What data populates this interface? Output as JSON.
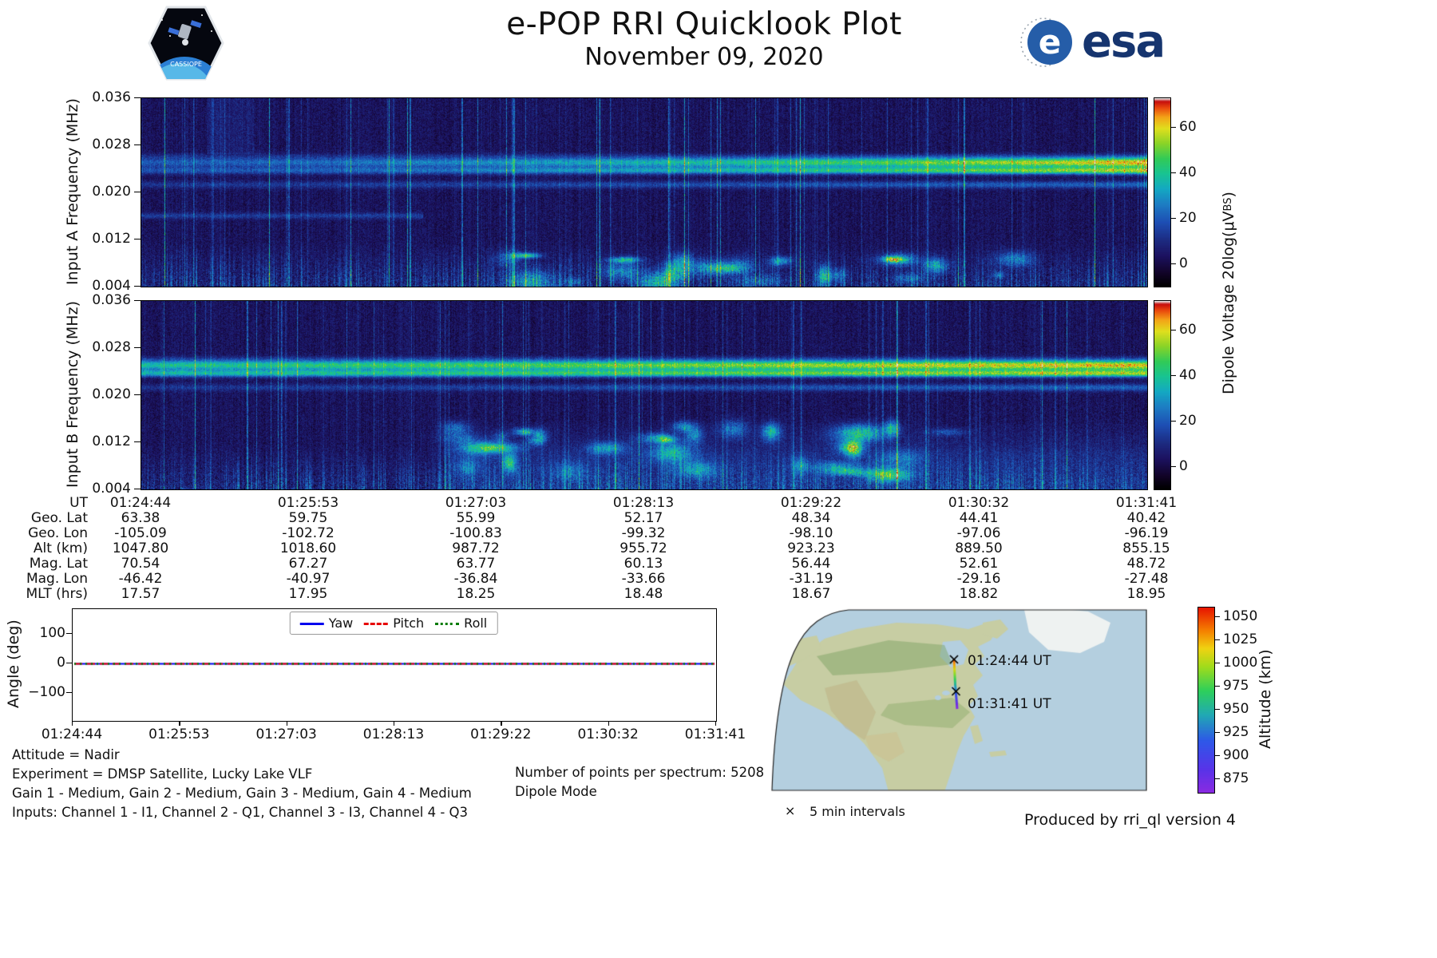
{
  "header": {
    "title": "e-POP RRI Quicklook Plot",
    "subtitle": "November 09, 2020",
    "cassiope_logo_text": "CASSIOPE",
    "esa_logo_text": "esa"
  },
  "colors": {
    "spectro_colormap": [
      [
        0,
        "#000000"
      ],
      [
        0.07,
        "#120428"
      ],
      [
        0.16,
        "#1c1260"
      ],
      [
        0.24,
        "#1c2a80"
      ],
      [
        0.34,
        "#1e4fb4"
      ],
      [
        0.44,
        "#1d7fc4"
      ],
      [
        0.52,
        "#14aac2"
      ],
      [
        0.6,
        "#19c492"
      ],
      [
        0.68,
        "#33cb57"
      ],
      [
        0.76,
        "#8ad428"
      ],
      [
        0.84,
        "#e0df1e"
      ],
      [
        0.9,
        "#f4a418"
      ],
      [
        0.95,
        "#ea4a0e"
      ],
      [
        0.985,
        "#c60d0d"
      ],
      [
        1,
        "#e6e3e3"
      ]
    ],
    "altitude_colormap": [
      [
        0,
        "#8a2be2"
      ],
      [
        0.12,
        "#5a33e8"
      ],
      [
        0.28,
        "#2e59e8"
      ],
      [
        0.42,
        "#21aab4"
      ],
      [
        0.55,
        "#2ed05c"
      ],
      [
        0.68,
        "#a0dc1c"
      ],
      [
        0.78,
        "#f0d312"
      ],
      [
        0.88,
        "#f57d00"
      ],
      [
        1,
        "#e81500"
      ]
    ],
    "ocean": "#b4cfdf",
    "land": "#c7cda3",
    "ice": "#eef2f1"
  },
  "chart_data": [
    {
      "id": "spectrogram_a",
      "type": "heatmap",
      "ylabel": "Input A Frequency (MHz)",
      "yticks": [
        "0.036",
        "0.028",
        "0.020",
        "0.012",
        "0.004"
      ],
      "ylim_mhz": [
        0.004,
        0.036
      ],
      "xlim_ut": [
        "01:24:44",
        "01:31:41"
      ],
      "colorbar": {
        "label_main": "Dipole Voltage 20log(μV",
        "label_sub": "BS",
        "label_close": ")",
        "ticks": [
          "60",
          "40",
          "20",
          "0"
        ],
        "range": [
          -10,
          73
        ]
      },
      "content_note": "VLF noise floor with emission band near 0.024-0.025 MHz brightening toward end of pass, weaker band near 0.021 MHz, impulsive vertical striations, structured broadband noise below 0.010 MHz"
    },
    {
      "id": "spectrogram_b",
      "type": "heatmap",
      "ylabel": "Input B Frequency (MHz)",
      "yticks": [
        "0.036",
        "0.028",
        "0.020",
        "0.012",
        "0.004"
      ],
      "ylim_mhz": [
        0.004,
        0.036
      ],
      "xlim_ut": [
        "01:24:44",
        "01:31:41"
      ],
      "colorbar": {
        "ticks": [
          "60",
          "40",
          "20",
          "0"
        ],
        "range": [
          -10,
          73
        ]
      },
      "content_note": "Similar band near 0.024-0.025 MHz strong across whole pass, extensive diffuse emissions 0.006-0.015 MHz in middle of pass"
    },
    {
      "id": "ephemeris_table",
      "type": "table",
      "rows": [
        {
          "label": "UT",
          "values": [
            "01:24:44",
            "01:25:53",
            "01:27:03",
            "01:28:13",
            "01:29:22",
            "01:30:32",
            "01:31:41"
          ]
        },
        {
          "label": "Geo. Lat",
          "values": [
            "63.38",
            "59.75",
            "55.99",
            "52.17",
            "48.34",
            "44.41",
            "40.42"
          ]
        },
        {
          "label": "Geo. Lon",
          "values": [
            "-105.09",
            "-102.72",
            "-100.83",
            "-99.32",
            "-98.10",
            "-97.06",
            "-96.19"
          ]
        },
        {
          "label": "Alt (km)",
          "values": [
            "1047.80",
            "1018.60",
            "987.72",
            "955.72",
            "923.23",
            "889.50",
            "855.15"
          ]
        },
        {
          "label": "Mag. Lat",
          "values": [
            "70.54",
            "67.27",
            "63.77",
            "60.13",
            "56.44",
            "52.61",
            "48.72"
          ]
        },
        {
          "label": "Mag. Lon",
          "values": [
            "-46.42",
            "-40.97",
            "-36.84",
            "-33.66",
            "-31.19",
            "-29.16",
            "-27.48"
          ]
        },
        {
          "label": "MLT (hrs)",
          "values": [
            "17.57",
            "17.95",
            "18.25",
            "18.48",
            "18.67",
            "18.82",
            "18.95"
          ]
        }
      ]
    },
    {
      "id": "attitude_plot",
      "type": "line",
      "ylabel": "Angle (deg)",
      "yticks": [
        "100",
        "0",
        "−100"
      ],
      "ylim": [
        -190,
        190
      ],
      "xticks": [
        "01:24:44",
        "01:25:53",
        "01:27:03",
        "01:28:13",
        "01:29:22",
        "01:30:32",
        "01:31:41"
      ],
      "legend_position": "upper center",
      "series": [
        {
          "name": "Yaw",
          "color": "#0000ee",
          "style": "solid",
          "values_deg": [
            0,
            0,
            0,
            0,
            0,
            0,
            0
          ]
        },
        {
          "name": "Pitch",
          "color": "#e60000",
          "style": "dashed",
          "values_deg": [
            0,
            0,
            0,
            0,
            0,
            0,
            0
          ]
        },
        {
          "name": "Roll",
          "color": "#007a00",
          "style": "dotted",
          "values_deg": [
            0,
            0,
            0,
            0,
            0,
            0,
            0
          ]
        }
      ]
    },
    {
      "id": "ground_track_map",
      "type": "map",
      "markers": [
        {
          "label": "01:24:44 UT"
        },
        {
          "label": "01:31:41 UT"
        }
      ],
      "interval_marker": "×",
      "interval_legend": "5 min intervals",
      "track_altitude_km": [
        "1047.80",
        "855.15"
      ],
      "colorbar": {
        "label": "Altitude (km)",
        "ticks": [
          "1050",
          "1025",
          "1000",
          "975",
          "950",
          "925",
          "900",
          "875"
        ],
        "range": [
          860,
          1060
        ]
      }
    }
  ],
  "footer": {
    "attitude": "Attitude = Nadir",
    "experiment": "Experiment = DMSP Satellite, Lucky Lake VLF",
    "gains": "Gain 1 - Medium, Gain 2 - Medium, Gain 3 - Medium, Gain 4 - Medium",
    "inputs": "Inputs: Channel 1 - I1, Channel 2 - Q1, Channel 3 - I3, Channel 4 - Q3",
    "points_per_spectrum": "Number of points per spectrum: 5208",
    "mode": "Dipole Mode",
    "produced_by": "Produced by rri_ql version 4"
  }
}
